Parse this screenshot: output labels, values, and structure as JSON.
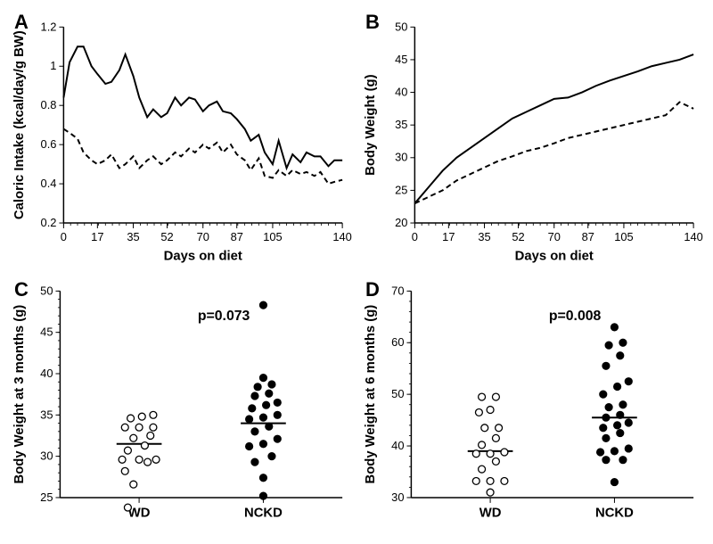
{
  "panelA": {
    "label": "A",
    "type": "line",
    "xlabel": "Days on diet",
    "ylabel": "Caloric Intake (kcal/day/g BW)",
    "xlim": [
      0,
      140
    ],
    "ylim": [
      0.2,
      1.2
    ],
    "xticks": [
      0,
      17,
      35,
      52,
      70,
      87,
      105,
      140
    ],
    "yticks": [
      0.2,
      0.4,
      0.6,
      0.8,
      1,
      1.2
    ],
    "xtick_labels": [
      "0",
      "17",
      "35",
      "52",
      "70",
      "87",
      "105",
      "140"
    ],
    "ytick_labels": [
      "0.2",
      "0.4",
      "0.6",
      "0.8",
      "1",
      "1.2"
    ],
    "label_fontsize": 15,
    "tick_fontsize": 13,
    "background_color": "#ffffff",
    "line_width": 2,
    "series": [
      {
        "name": "solid",
        "color": "#000000",
        "dash": "none",
        "x": [
          0,
          3,
          7,
          10,
          14,
          17,
          21,
          24,
          28,
          31,
          35,
          38,
          42,
          45,
          49,
          52,
          56,
          59,
          63,
          66,
          70,
          73,
          77,
          80,
          84,
          87,
          91,
          94,
          98,
          101,
          105,
          108,
          112,
          115,
          119,
          122,
          126,
          129,
          133,
          136,
          140
        ],
        "y": [
          0.84,
          1.02,
          1.1,
          1.1,
          1.0,
          0.96,
          0.91,
          0.92,
          0.98,
          1.06,
          0.95,
          0.84,
          0.74,
          0.78,
          0.74,
          0.76,
          0.84,
          0.8,
          0.84,
          0.83,
          0.77,
          0.8,
          0.82,
          0.77,
          0.76,
          0.73,
          0.68,
          0.62,
          0.65,
          0.56,
          0.5,
          0.62,
          0.48,
          0.55,
          0.51,
          0.56,
          0.54,
          0.54,
          0.49,
          0.52,
          0.52
        ]
      },
      {
        "name": "dashed",
        "color": "#000000",
        "dash": "6,4",
        "x": [
          0,
          3,
          7,
          10,
          14,
          17,
          21,
          24,
          28,
          31,
          35,
          38,
          42,
          45,
          49,
          52,
          56,
          59,
          63,
          66,
          70,
          73,
          77,
          80,
          84,
          87,
          91,
          94,
          98,
          101,
          105,
          108,
          112,
          115,
          119,
          122,
          126,
          129,
          133,
          136,
          140
        ],
        "y": [
          0.68,
          0.66,
          0.63,
          0.56,
          0.52,
          0.5,
          0.52,
          0.55,
          0.48,
          0.5,
          0.54,
          0.48,
          0.52,
          0.54,
          0.5,
          0.52,
          0.56,
          0.54,
          0.58,
          0.56,
          0.6,
          0.58,
          0.61,
          0.56,
          0.6,
          0.55,
          0.52,
          0.47,
          0.53,
          0.44,
          0.43,
          0.47,
          0.44,
          0.47,
          0.45,
          0.46,
          0.44,
          0.46,
          0.4,
          0.41,
          0.42
        ]
      }
    ]
  },
  "panelB": {
    "label": "B",
    "type": "line",
    "xlabel": "Days on diet",
    "ylabel": "Body Weight (g)",
    "xlim": [
      0,
      140
    ],
    "ylim": [
      20,
      50
    ],
    "xticks": [
      0,
      17,
      35,
      52,
      70,
      87,
      105,
      140
    ],
    "yticks": [
      20,
      25,
      30,
      35,
      40,
      45,
      50
    ],
    "xtick_labels": [
      "0",
      "17",
      "35",
      "52",
      "70",
      "87",
      "105",
      "140"
    ],
    "ytick_labels": [
      "20",
      "25",
      "30",
      "35",
      "40",
      "45",
      "50"
    ],
    "label_fontsize": 15,
    "tick_fontsize": 13,
    "background_color": "#ffffff",
    "line_width": 2,
    "series": [
      {
        "name": "solid",
        "color": "#000000",
        "dash": "none",
        "x": [
          0,
          7,
          14,
          21,
          28,
          35,
          42,
          49,
          56,
          63,
          70,
          77,
          84,
          91,
          98,
          105,
          112,
          119,
          126,
          133,
          140
        ],
        "y": [
          23,
          25.5,
          28,
          30,
          31.5,
          33,
          34.5,
          36,
          37,
          38,
          39,
          39.2,
          40,
          41,
          41.8,
          42.5,
          43.2,
          44,
          44.5,
          45,
          45.8
        ]
      },
      {
        "name": "dashed",
        "color": "#000000",
        "dash": "6,4",
        "x": [
          0,
          7,
          14,
          21,
          28,
          35,
          42,
          49,
          56,
          63,
          70,
          77,
          84,
          91,
          98,
          105,
          112,
          119,
          126,
          133,
          140
        ],
        "y": [
          23,
          24,
          25,
          26.5,
          27.5,
          28.5,
          29.5,
          30.2,
          31,
          31.5,
          32.2,
          33,
          33.5,
          34,
          34.5,
          35,
          35.5,
          36,
          36.5,
          38.5,
          37.5
        ]
      }
    ]
  },
  "panelC": {
    "label": "C",
    "type": "scatter",
    "ylabel": "Body Weight at 3 months (g)",
    "p_text": "p=0.073",
    "ylim": [
      25,
      50
    ],
    "yticks": [
      25,
      30,
      35,
      40,
      45,
      50
    ],
    "ytick_labels": [
      "25",
      "30",
      "35",
      "40",
      "45",
      "50"
    ],
    "categories": [
      "WD",
      "NCKD"
    ],
    "category_x": [
      0.28,
      0.72
    ],
    "label_fontsize": 15,
    "tick_fontsize": 13,
    "marker_radius": 4,
    "marker_stroke": "#000000",
    "background_color": "#ffffff",
    "mean_line_length": 0.16,
    "groups": [
      {
        "name": "WD",
        "fill": "#ffffff",
        "mean": 31.5,
        "points": [
          {
            "jx": -0.04,
            "y": 23.8
          },
          {
            "jx": -0.05,
            "y": 28.2
          },
          {
            "jx": -0.02,
            "y": 26.6
          },
          {
            "jx": 0.03,
            "y": 29.3
          },
          {
            "jx": -0.06,
            "y": 29.6
          },
          {
            "jx": 0.0,
            "y": 29.6
          },
          {
            "jx": 0.06,
            "y": 29.6
          },
          {
            "jx": -0.04,
            "y": 30.7
          },
          {
            "jx": 0.02,
            "y": 31.3
          },
          {
            "jx": -0.02,
            "y": 32.2
          },
          {
            "jx": 0.04,
            "y": 32.5
          },
          {
            "jx": -0.05,
            "y": 33.5
          },
          {
            "jx": 0.0,
            "y": 33.5
          },
          {
            "jx": 0.05,
            "y": 33.5
          },
          {
            "jx": -0.03,
            "y": 34.6
          },
          {
            "jx": 0.01,
            "y": 34.8
          },
          {
            "jx": 0.05,
            "y": 35.0
          }
        ]
      },
      {
        "name": "NCKD",
        "fill": "#000000",
        "mean": 34,
        "points": [
          {
            "jx": 0.0,
            "y": 25.2
          },
          {
            "jx": 0.0,
            "y": 27.4
          },
          {
            "jx": -0.03,
            "y": 29.3
          },
          {
            "jx": 0.03,
            "y": 30.0
          },
          {
            "jx": -0.05,
            "y": 31.2
          },
          {
            "jx": 0.0,
            "y": 31.5
          },
          {
            "jx": 0.05,
            "y": 32.1
          },
          {
            "jx": -0.03,
            "y": 33.0
          },
          {
            "jx": 0.02,
            "y": 33.6
          },
          {
            "jx": -0.05,
            "y": 34.5
          },
          {
            "jx": 0.0,
            "y": 34.7
          },
          {
            "jx": 0.05,
            "y": 35.0
          },
          {
            "jx": -0.04,
            "y": 35.8
          },
          {
            "jx": 0.01,
            "y": 36.2
          },
          {
            "jx": 0.05,
            "y": 36.5
          },
          {
            "jx": -0.03,
            "y": 37.3
          },
          {
            "jx": 0.02,
            "y": 37.6
          },
          {
            "jx": -0.02,
            "y": 38.4
          },
          {
            "jx": 0.03,
            "y": 38.7
          },
          {
            "jx": 0.0,
            "y": 39.5
          },
          {
            "jx": 0.0,
            "y": 48.3
          }
        ]
      }
    ]
  },
  "panelD": {
    "label": "D",
    "type": "scatter",
    "ylabel": "Body Weight at 6 months (g)",
    "p_text": "p=0.008",
    "ylim": [
      30,
      70
    ],
    "yticks": [
      30,
      40,
      50,
      60,
      70
    ],
    "ytick_labels": [
      "30",
      "40",
      "50",
      "60",
      "70"
    ],
    "categories": [
      "WD",
      "NCKD"
    ],
    "category_x": [
      0.28,
      0.72
    ],
    "label_fontsize": 15,
    "tick_fontsize": 13,
    "marker_radius": 4,
    "marker_stroke": "#000000",
    "background_color": "#ffffff",
    "mean_line_length": 0.16,
    "groups": [
      {
        "name": "WD",
        "fill": "#ffffff",
        "mean": 39,
        "points": [
          {
            "jx": 0.0,
            "y": 31.0
          },
          {
            "jx": -0.05,
            "y": 33.2
          },
          {
            "jx": 0.0,
            "y": 33.2
          },
          {
            "jx": 0.05,
            "y": 33.2
          },
          {
            "jx": -0.03,
            "y": 35.5
          },
          {
            "jx": 0.02,
            "y": 37.0
          },
          {
            "jx": -0.05,
            "y": 38.5
          },
          {
            "jx": 0.0,
            "y": 38.5
          },
          {
            "jx": 0.05,
            "y": 38.8
          },
          {
            "jx": -0.03,
            "y": 40.2
          },
          {
            "jx": 0.02,
            "y": 41.5
          },
          {
            "jx": -0.02,
            "y": 43.5
          },
          {
            "jx": 0.03,
            "y": 43.5
          },
          {
            "jx": -0.04,
            "y": 46.5
          },
          {
            "jx": 0.0,
            "y": 47.0
          },
          {
            "jx": -0.03,
            "y": 49.5
          },
          {
            "jx": 0.02,
            "y": 49.5
          }
        ]
      },
      {
        "name": "NCKD",
        "fill": "#000000",
        "mean": 45.5,
        "points": [
          {
            "jx": 0.0,
            "y": 33.0
          },
          {
            "jx": -0.03,
            "y": 37.3
          },
          {
            "jx": 0.03,
            "y": 37.3
          },
          {
            "jx": -0.05,
            "y": 38.8
          },
          {
            "jx": 0.0,
            "y": 39.0
          },
          {
            "jx": 0.05,
            "y": 39.5
          },
          {
            "jx": -0.03,
            "y": 41.5
          },
          {
            "jx": 0.02,
            "y": 42.5
          },
          {
            "jx": -0.04,
            "y": 43.5
          },
          {
            "jx": 0.01,
            "y": 44.0
          },
          {
            "jx": 0.05,
            "y": 44.5
          },
          {
            "jx": -0.03,
            "y": 45.5
          },
          {
            "jx": 0.02,
            "y": 46.0
          },
          {
            "jx": -0.02,
            "y": 47.5
          },
          {
            "jx": 0.03,
            "y": 48.0
          },
          {
            "jx": -0.04,
            "y": 50.0
          },
          {
            "jx": 0.01,
            "y": 51.5
          },
          {
            "jx": 0.05,
            "y": 52.5
          },
          {
            "jx": -0.03,
            "y": 55.5
          },
          {
            "jx": 0.02,
            "y": 57.5
          },
          {
            "jx": -0.02,
            "y": 59.5
          },
          {
            "jx": 0.03,
            "y": 60.0
          },
          {
            "jx": 0.0,
            "y": 63.0
          }
        ]
      }
    ]
  }
}
